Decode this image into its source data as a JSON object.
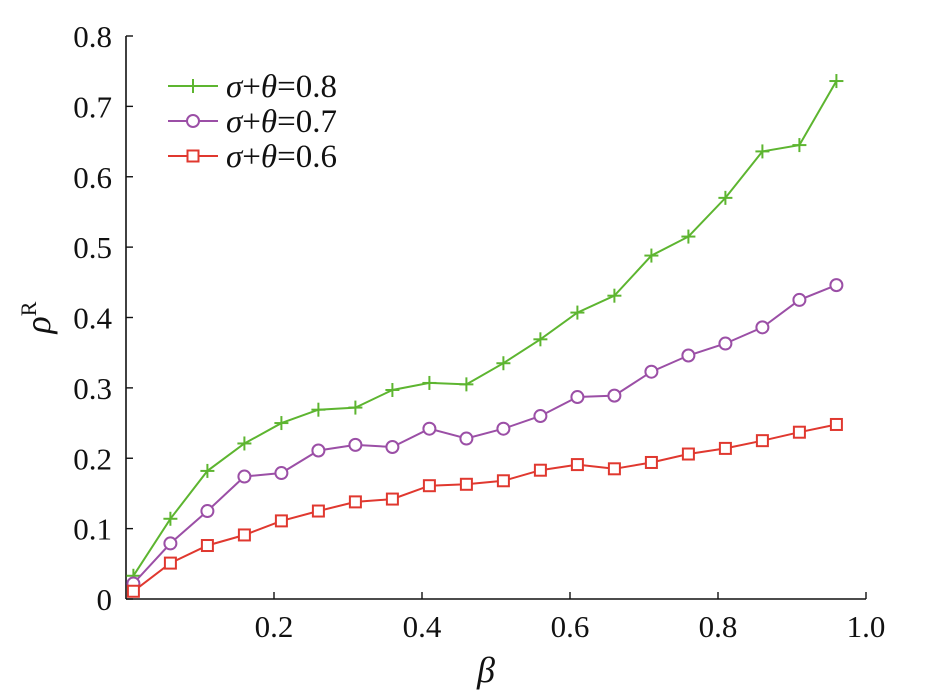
{
  "chart_data": {
    "type": "line",
    "xlabel": "β",
    "ylabel": "ρ",
    "ylabel_superscript": "R",
    "xlim": [
      0.0,
      1.0
    ],
    "ylim": [
      0,
      0.8
    ],
    "xticks": [
      0.2,
      0.4,
      0.6,
      0.8,
      1.0
    ],
    "xtick_labels": [
      "0.2",
      "0.4",
      "0.6",
      "0.8",
      "1.0"
    ],
    "yticks": [
      0,
      0.1,
      0.2,
      0.3,
      0.4,
      0.5,
      0.6,
      0.7,
      0.8
    ],
    "ytick_labels": [
      "0",
      "0.1",
      "0.2",
      "0.3",
      "0.4",
      "0.5",
      "0.6",
      "0.7",
      "0.8"
    ],
    "grid": false,
    "legend_position": "top-left",
    "x": [
      0.01,
      0.06,
      0.11,
      0.16,
      0.21,
      0.26,
      0.31,
      0.36,
      0.41,
      0.46,
      0.51,
      0.56,
      0.61,
      0.66,
      0.71,
      0.76,
      0.81,
      0.86,
      0.91,
      0.96
    ],
    "series": [
      {
        "name": "σ+θ=0.8",
        "color": "#5db530",
        "marker": "plus",
        "values": [
          0.033,
          0.114,
          0.182,
          0.221,
          0.25,
          0.269,
          0.272,
          0.297,
          0.307,
          0.305,
          0.335,
          0.369,
          0.407,
          0.431,
          0.488,
          0.515,
          0.57,
          0.636,
          0.645,
          0.736
        ]
      },
      {
        "name": "σ+θ=0.7",
        "color": "#9b4fa6",
        "marker": "circle",
        "values": [
          0.022,
          0.079,
          0.125,
          0.174,
          0.179,
          0.211,
          0.219,
          0.216,
          0.242,
          0.228,
          0.242,
          0.26,
          0.287,
          0.289,
          0.323,
          0.346,
          0.363,
          0.386,
          0.425,
          0.446
        ]
      },
      {
        "name": "σ+θ=0.6",
        "color": "#e0382f",
        "marker": "square",
        "values": [
          0.011,
          0.051,
          0.076,
          0.091,
          0.111,
          0.125,
          0.138,
          0.142,
          0.161,
          0.163,
          0.168,
          0.183,
          0.191,
          0.185,
          0.194,
          0.206,
          0.214,
          0.225,
          0.237,
          0.248
        ]
      }
    ]
  }
}
